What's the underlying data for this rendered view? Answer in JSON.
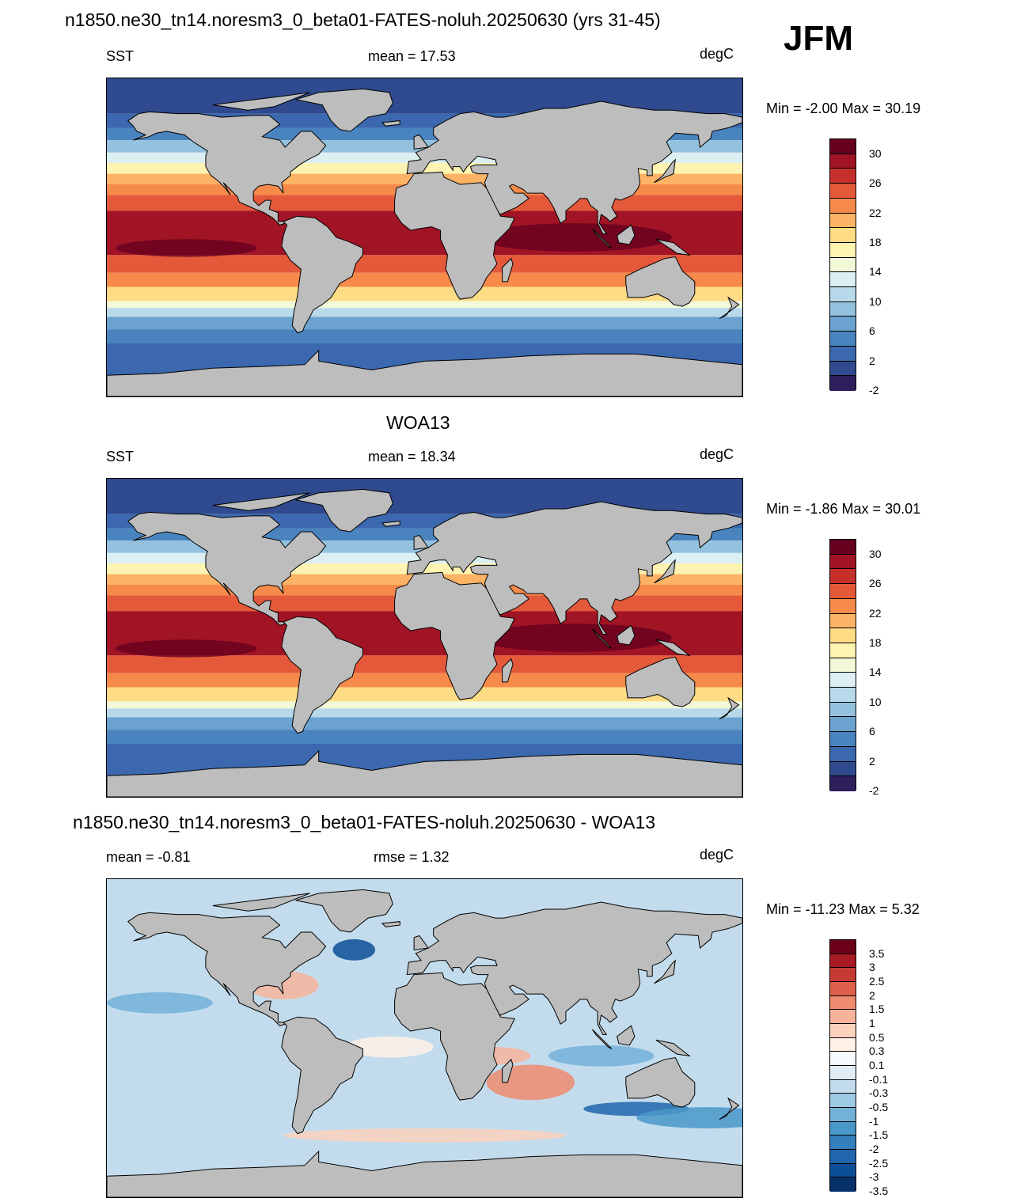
{
  "run_title": "n1850.ne30_tn14.noresm3_0_beta01-FATES-noluh.20250630 (yrs 31-45)",
  "season": "JFM",
  "colors": {
    "land": "#bdbdbd",
    "coast": "#000000",
    "sst_scale": [
      "#2c1f5c",
      "#2f4a8e",
      "#3b68ae",
      "#4a84bf",
      "#6ca2cf",
      "#93c1de",
      "#b8d9ea",
      "#dceff3",
      "#f2f9d8",
      "#fef3b0",
      "#fedb85",
      "#fcb366",
      "#f58a4b",
      "#e4593a",
      "#c6302c",
      "#a11425",
      "#67001f"
    ],
    "diff_scale": [
      "#08306b",
      "#0d4f96",
      "#2166ac",
      "#3380bd",
      "#4a98c9",
      "#73b2d8",
      "#9cc9e3",
      "#c3dced",
      "#e1edf5",
      "#f7fbff",
      "#fff1e8",
      "#fbd2bc",
      "#f7b49a",
      "#ef8c6f",
      "#de5f4c",
      "#c53a32",
      "#a81a24",
      "#6c0019"
    ]
  },
  "panels": [
    {
      "id": "model",
      "heading": "",
      "left_label": "SST",
      "center_label": "mean =  17.53",
      "unit": "degC",
      "minmax": "Min =  -2.00 Max =  30.19",
      "kind": "sst",
      "colorbar_ticks": [
        "30",
        "26",
        "22",
        "18",
        "14",
        "10",
        "6",
        "2",
        "-2"
      ]
    },
    {
      "id": "obs",
      "heading": "WOA13",
      "left_label": "SST",
      "center_label": "mean =  18.34",
      "unit": "degC",
      "minmax": "Min =  -1.86 Max =  30.01",
      "kind": "sst",
      "colorbar_ticks": [
        "30",
        "26",
        "22",
        "18",
        "14",
        "10",
        "6",
        "2",
        "-2"
      ]
    },
    {
      "id": "diff",
      "heading": "n1850.ne30_tn14.noresm3_0_beta01-FATES-noluh.20250630 - WOA13",
      "left_label": "mean =  -0.81",
      "center_label": "rmse =   1.32",
      "unit": "degC",
      "minmax": "Min = -11.23 Max =   5.32",
      "kind": "diff",
      "colorbar_ticks": [
        "3.5",
        "3",
        "2.5",
        "2",
        "1.5",
        "1",
        "0.5",
        "0.3",
        "0.1",
        "-0.1",
        "-0.3",
        "-0.5",
        "-1",
        "-1.5",
        "-2",
        "-2.5",
        "-3",
        "-3.5"
      ]
    }
  ]
}
